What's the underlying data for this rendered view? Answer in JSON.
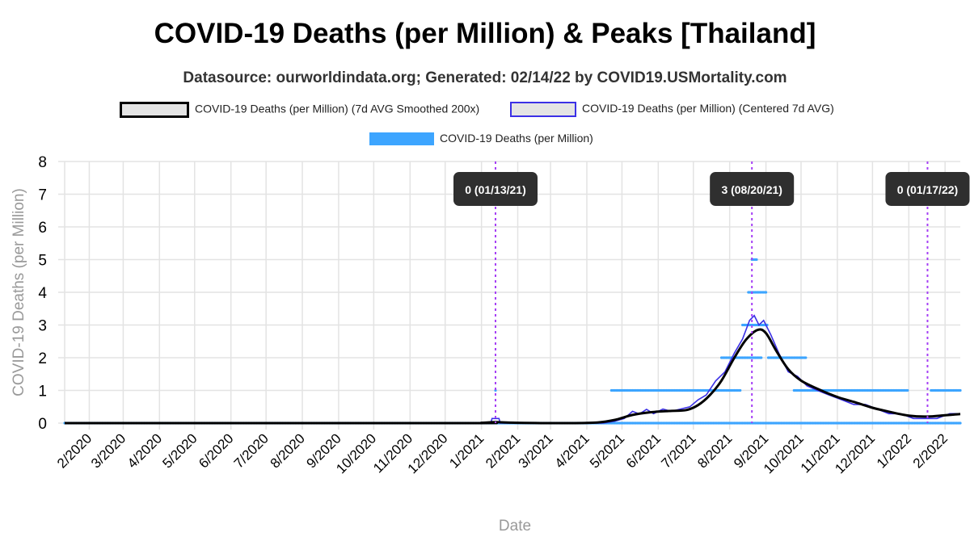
{
  "title": "COVID-19 Deaths (per Million) & Peaks [Thailand]",
  "subtitle": "Datasource: ourworldindata.org; Generated: 02/14/22 by COVID19.USMortality.com",
  "colors": {
    "smoothed": "#000000",
    "centered": "#3b30e6",
    "daily": "#3da5ff",
    "peak_line": "#a640f5",
    "peak_label_bg": "#2f2f2f",
    "grid": "#e3e3e3",
    "axis_text": "#000000",
    "axis_title": "#999999"
  },
  "chart_data": {
    "type": "line",
    "xlabel": "Date",
    "ylabel": "COVID-19 Deaths (per Million)",
    "ylim": [
      0,
      8
    ],
    "yticks": [
      0,
      1,
      2,
      3,
      4,
      5,
      6,
      7,
      8
    ],
    "xlim": [
      "2020-01-11",
      "2022-02-14"
    ],
    "xticks": [
      {
        "date": "2020-02-01",
        "label": "2/2020"
      },
      {
        "date": "2020-03-01",
        "label": "3/2020"
      },
      {
        "date": "2020-04-01",
        "label": "4/2020"
      },
      {
        "date": "2020-05-01",
        "label": "5/2020"
      },
      {
        "date": "2020-06-01",
        "label": "6/2020"
      },
      {
        "date": "2020-07-01",
        "label": "7/2020"
      },
      {
        "date": "2020-08-01",
        "label": "8/2020"
      },
      {
        "date": "2020-09-01",
        "label": "9/2020"
      },
      {
        "date": "2020-10-01",
        "label": "10/2020"
      },
      {
        "date": "2020-11-01",
        "label": "11/2020"
      },
      {
        "date": "2020-12-01",
        "label": "12/2020"
      },
      {
        "date": "2021-01-01",
        "label": "1/2021"
      },
      {
        "date": "2021-02-01",
        "label": "2/2021"
      },
      {
        "date": "2021-03-01",
        "label": "3/2021"
      },
      {
        "date": "2021-04-01",
        "label": "4/2021"
      },
      {
        "date": "2021-05-01",
        "label": "5/2021"
      },
      {
        "date": "2021-06-01",
        "label": "6/2021"
      },
      {
        "date": "2021-07-01",
        "label": "7/2021"
      },
      {
        "date": "2021-08-01",
        "label": "8/2021"
      },
      {
        "date": "2021-09-01",
        "label": "9/2021"
      },
      {
        "date": "2021-10-01",
        "label": "10/2021"
      },
      {
        "date": "2021-11-01",
        "label": "11/2021"
      },
      {
        "date": "2021-12-01",
        "label": "12/2021"
      },
      {
        "date": "2022-01-01",
        "label": "1/2022"
      },
      {
        "date": "2022-02-01",
        "label": "2/2022"
      }
    ],
    "grid": true,
    "legend_position": "top",
    "series": [
      {
        "name": "COVID-19 Deaths (per Million) (7d AVG Smoothed 200x)",
        "style": "smoothed",
        "points": [
          [
            "2020-01-11",
            0
          ],
          [
            "2020-12-15",
            0
          ],
          [
            "2021-01-01",
            0.01
          ],
          [
            "2021-01-13",
            0.03
          ],
          [
            "2021-02-01",
            0.01
          ],
          [
            "2021-03-15",
            0.0
          ],
          [
            "2021-04-10",
            0.02
          ],
          [
            "2021-04-25",
            0.1
          ],
          [
            "2021-05-10",
            0.25
          ],
          [
            "2021-05-25",
            0.33
          ],
          [
            "2021-06-10",
            0.37
          ],
          [
            "2021-06-25",
            0.4
          ],
          [
            "2021-07-05",
            0.55
          ],
          [
            "2021-07-15",
            0.85
          ],
          [
            "2021-07-25",
            1.3
          ],
          [
            "2021-08-05",
            2.0
          ],
          [
            "2021-08-15",
            2.55
          ],
          [
            "2021-08-25",
            2.85
          ],
          [
            "2021-09-01",
            2.75
          ],
          [
            "2021-09-10",
            2.2
          ],
          [
            "2021-09-20",
            1.65
          ],
          [
            "2021-10-01",
            1.3
          ],
          [
            "2021-10-15",
            1.05
          ],
          [
            "2021-11-01",
            0.8
          ],
          [
            "2021-11-15",
            0.65
          ],
          [
            "2021-12-01",
            0.47
          ],
          [
            "2021-12-15",
            0.35
          ],
          [
            "2022-01-01",
            0.23
          ],
          [
            "2022-01-17",
            0.2
          ],
          [
            "2022-02-01",
            0.24
          ],
          [
            "2022-02-14",
            0.28
          ]
        ]
      },
      {
        "name": "COVID-19 Deaths (per Million) (Centered 7d AVG)",
        "style": "centered",
        "points": [
          [
            "2020-01-11",
            0
          ],
          [
            "2021-01-09",
            0
          ],
          [
            "2021-01-10",
            0.14
          ],
          [
            "2021-01-16",
            0.14
          ],
          [
            "2021-01-17",
            0
          ],
          [
            "2021-04-15",
            0
          ],
          [
            "2021-04-25",
            0.06
          ],
          [
            "2021-05-03",
            0.14
          ],
          [
            "2021-05-10",
            0.36
          ],
          [
            "2021-05-16",
            0.28
          ],
          [
            "2021-05-22",
            0.42
          ],
          [
            "2021-05-28",
            0.29
          ],
          [
            "2021-06-05",
            0.43
          ],
          [
            "2021-06-12",
            0.36
          ],
          [
            "2021-06-20",
            0.43
          ],
          [
            "2021-06-28",
            0.5
          ],
          [
            "2021-07-05",
            0.71
          ],
          [
            "2021-07-12",
            0.86
          ],
          [
            "2021-07-20",
            1.29
          ],
          [
            "2021-07-28",
            1.57
          ],
          [
            "2021-08-05",
            2.14
          ],
          [
            "2021-08-12",
            2.57
          ],
          [
            "2021-08-18",
            3.14
          ],
          [
            "2021-08-22",
            3.29
          ],
          [
            "2021-08-26",
            3.0
          ],
          [
            "2021-08-30",
            3.14
          ],
          [
            "2021-09-05",
            2.71
          ],
          [
            "2021-09-12",
            2.14
          ],
          [
            "2021-09-20",
            1.57
          ],
          [
            "2021-09-28",
            1.43
          ],
          [
            "2021-10-06",
            1.14
          ],
          [
            "2021-10-15",
            1.0
          ],
          [
            "2021-10-25",
            0.86
          ],
          [
            "2021-11-05",
            0.71
          ],
          [
            "2021-11-15",
            0.57
          ],
          [
            "2021-11-25",
            0.57
          ],
          [
            "2021-12-05",
            0.43
          ],
          [
            "2021-12-15",
            0.29
          ],
          [
            "2021-12-25",
            0.29
          ],
          [
            "2022-01-05",
            0.14
          ],
          [
            "2022-01-15",
            0.14
          ],
          [
            "2022-01-25",
            0.14
          ],
          [
            "2022-02-05",
            0.29
          ],
          [
            "2022-02-14",
            0.29
          ]
        ]
      },
      {
        "name": "COVID-19 Deaths (per Million)",
        "style": "daily",
        "ranges": [
          {
            "from": "2020-01-11",
            "to": "2022-02-14",
            "value": 0
          },
          {
            "from": "2021-01-13",
            "to": "2021-01-13",
            "value": 1
          },
          {
            "from": "2021-04-22",
            "to": "2021-08-10",
            "value": 1
          },
          {
            "from": "2021-07-25",
            "to": "2021-08-28",
            "value": 2
          },
          {
            "from": "2021-08-12",
            "to": "2021-09-02",
            "value": 3
          },
          {
            "from": "2021-08-17",
            "to": "2021-09-01",
            "value": 4
          },
          {
            "from": "2021-08-20",
            "to": "2021-08-24",
            "value": 5
          },
          {
            "from": "2021-09-03",
            "to": "2021-10-05",
            "value": 2
          },
          {
            "from": "2021-09-25",
            "to": "2021-12-31",
            "value": 1
          },
          {
            "from": "2022-01-20",
            "to": "2022-02-14",
            "value": 1
          }
        ]
      }
    ],
    "peaks": [
      {
        "date": "2021-01-13",
        "label": "0 (01/13/21)"
      },
      {
        "date": "2021-08-20",
        "label": "3 (08/20/21)"
      },
      {
        "date": "2022-01-17",
        "label": "0 (01/17/22)"
      }
    ]
  }
}
